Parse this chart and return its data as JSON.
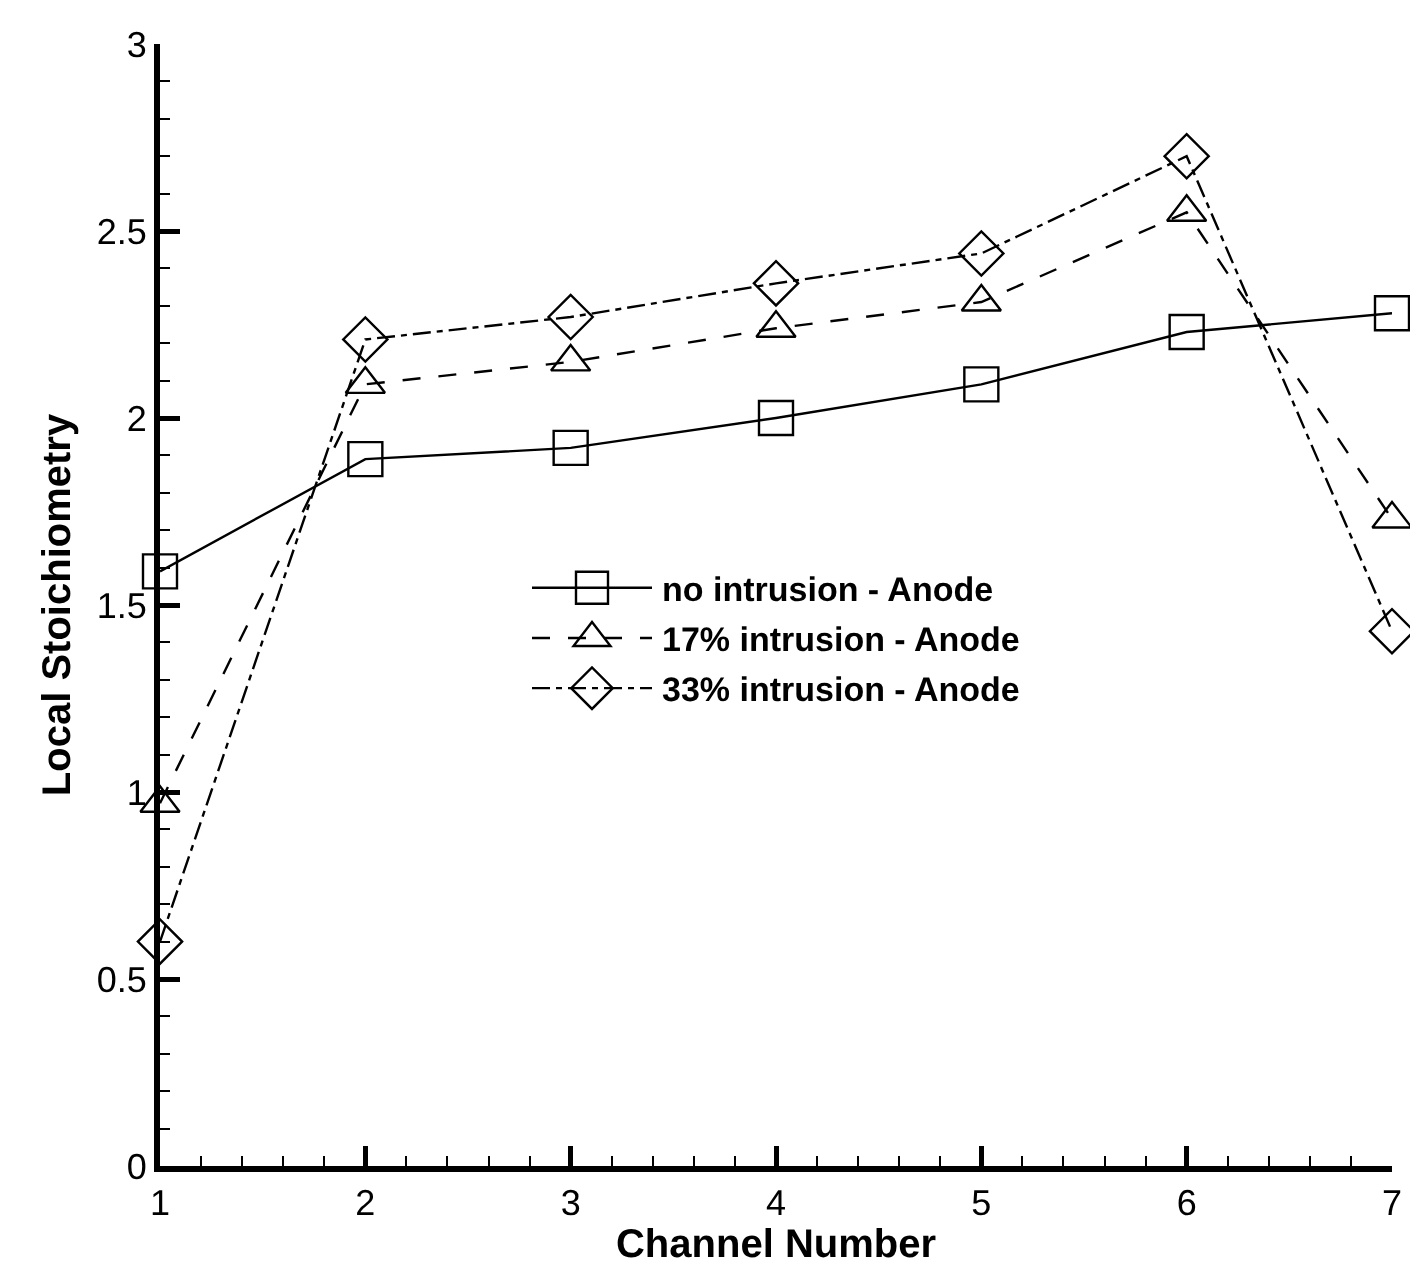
{
  "chart_data": {
    "type": "line",
    "xlabel": "Channel Number",
    "ylabel": "Local Stoichiometry",
    "x": [
      1,
      2,
      3,
      4,
      5,
      6,
      7
    ],
    "xlim": [
      1,
      7
    ],
    "xticks": [
      1,
      2,
      3,
      4,
      5,
      6,
      7
    ],
    "ylim": [
      0,
      3
    ],
    "yticks": [
      0,
      0.5,
      1,
      1.5,
      2,
      2.5,
      3
    ],
    "grid": false,
    "legend": "center",
    "series": [
      {
        "name": "no intrusion - Anode",
        "color": "#000000",
        "marker": "square",
        "line_style": "solid",
        "values": [
          1.59,
          1.89,
          1.92,
          2.0,
          2.09,
          2.23,
          2.28
        ]
      },
      {
        "name": "17% intrusion - Anode",
        "color": "#000000",
        "marker": "triangle",
        "line_style": "dashed",
        "values": [
          0.97,
          2.09,
          2.15,
          2.24,
          2.31,
          2.55,
          1.73
        ]
      },
      {
        "name": "33% intrusion - Anode",
        "color": "#000000",
        "marker": "diamond",
        "line_style": "dashdot",
        "values": [
          0.6,
          2.21,
          2.27,
          2.36,
          2.44,
          2.7,
          1.43
        ]
      }
    ]
  }
}
